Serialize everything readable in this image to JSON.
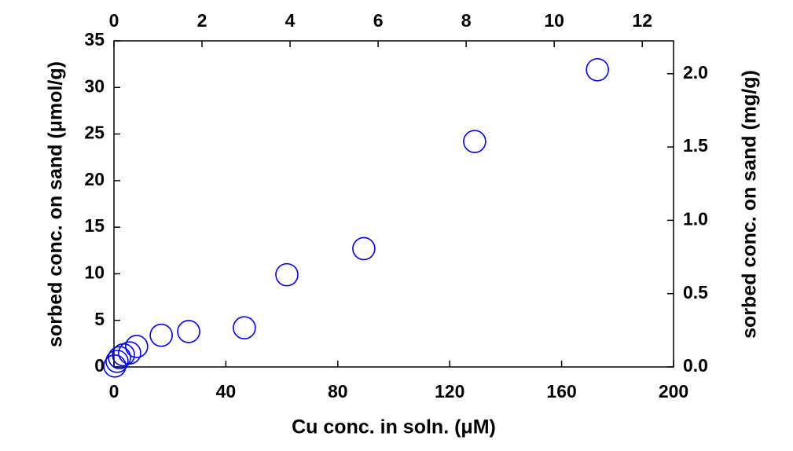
{
  "chart_data": {
    "type": "scatter",
    "xlabel": "Cu conc. in soln. (μM)",
    "ylabel": "sorbed conc. on sand (μmol/g)",
    "y2label": "sorbed conc. on sand (mg/g)",
    "x": [
      0.3,
      1.1,
      2.0,
      3.4,
      5.6,
      8.1,
      16.9,
      26.7,
      46.6,
      61.8,
      89.3,
      128.9,
      172.8
    ],
    "values": [
      0.1,
      0.6,
      1.0,
      1.3,
      1.5,
      2.2,
      3.4,
      3.8,
      4.2,
      9.9,
      12.7,
      24.2,
      31.9
    ],
    "color": "#0000ff",
    "xlim": [
      0,
      200
    ],
    "xticks": [
      0,
      40,
      80,
      120,
      160,
      200
    ],
    "x2lim": [
      0,
      12.71
    ],
    "x2ticks": [
      0,
      2,
      4,
      6,
      8,
      10,
      12
    ],
    "ylim": [
      0,
      35
    ],
    "yticks": [
      0,
      5,
      10,
      15,
      20,
      25,
      30,
      35
    ],
    "y2lim": [
      0,
      2.224
    ],
    "y2ticks": [
      {
        "value": 0,
        "label": "0.0"
      },
      {
        "value": 0.5,
        "label": "0.5"
      },
      {
        "value": 1,
        "label": "1.0"
      },
      {
        "value": 1.5,
        "label": "1.5"
      },
      {
        "value": 2,
        "label": "2.0"
      }
    ]
  }
}
